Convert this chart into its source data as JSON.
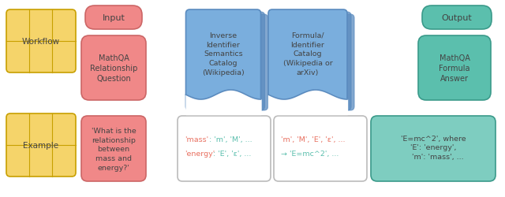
{
  "bg_color": "#ffffff",
  "yellow_color": "#F5D46A",
  "yellow_edge": "#C8A000",
  "pink_color": "#F08888",
  "pink_edge": "#CC6666",
  "blue_color": "#7AAEDD",
  "blue_dark_color": "#5A8BBF",
  "teal_color": "#5BBFAD",
  "teal_edge": "#3A9A8A",
  "teal_light_color": "#7ECDC0",
  "white_color": "#FFFFFF",
  "white_edge": "#BBBBBB",
  "salmon_text": "#E87060",
  "teal_text": "#5BBFAD",
  "dark_text": "#444444",
  "labels": {
    "workflow": "Workflow",
    "example": "Example",
    "input": "Input",
    "output": "Output",
    "mathqa_q": "MathQA\nRelationship\nQuestion",
    "mathqa_a": "MathQA\nFormula\nAnswer",
    "inv_id": "Inverse\nIdentifier\nSemantics\nCatalog\n(Wikipedia)",
    "form_id": "Formula/\nIdentifier\nCatalog\n(Wikipedia or\narXiv)",
    "example_q": "'What is the\nrelationship\nbetween\nmass and\nenergy?'",
    "example_out": "'E=mc^2', where\n'E': 'energy',\n    'm': 'mass', ..."
  }
}
